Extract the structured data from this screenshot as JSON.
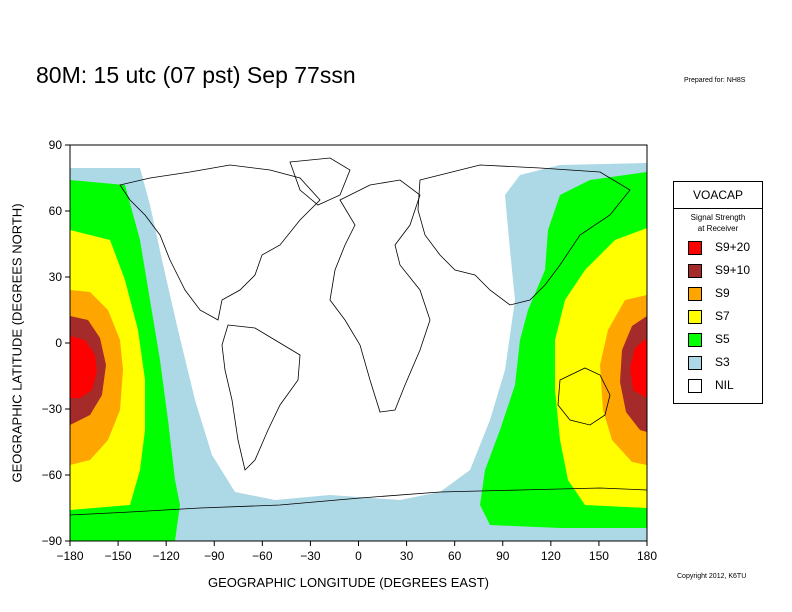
{
  "title": "80M:  15 utc (07 pst) Sep 77ssn",
  "prepared_for": "Prepared for: NH8S",
  "copyright": "Copyright 2012, K6TU",
  "axes": {
    "xlabel": "GEOGRAPHIC LONGITUDE (DEGREES EAST)",
    "ylabel": "GEOGRAPHIC LATITUDE (DEGREES NORTH)",
    "xticks": [
      "−180",
      "−150",
      "−120",
      "−90",
      "−60",
      "−30",
      "0",
      "30",
      "60",
      "90",
      "120",
      "150",
      "180"
    ],
    "yticks": [
      "90",
      "60",
      "30",
      "0",
      "−30",
      "−60",
      "−90"
    ],
    "xlim": [
      -180,
      180
    ],
    "ylim": [
      -90,
      90
    ]
  },
  "legend": {
    "title": "VOACAP",
    "subtitle_line1": "Signal Strength",
    "subtitle_line2": "at Receiver",
    "items": [
      {
        "label": "S9+20",
        "color": "#ff0000"
      },
      {
        "label": "S9+10",
        "color": "#a52a2a"
      },
      {
        "label": "S9",
        "color": "#ffa500"
      },
      {
        "label": "S7",
        "color": "#ffff00"
      },
      {
        "label": "S5",
        "color": "#00ff00"
      },
      {
        "label": "S3",
        "color": "#add8e6"
      },
      {
        "label": "NIL",
        "color": "#ffffff"
      }
    ]
  }
}
